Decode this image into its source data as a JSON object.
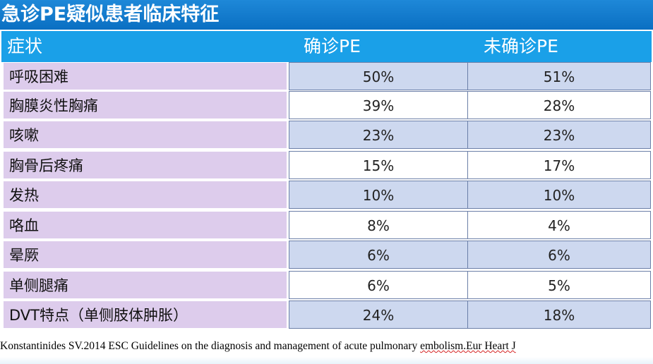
{
  "title": "急诊PE疑似患者临床特征",
  "table": {
    "headers": {
      "symptom": "症状",
      "pe": "确诊PE",
      "non_pe": "未确诊PE"
    },
    "rows": [
      {
        "symptom": "呼吸困难",
        "pe": "50%",
        "non_pe": "51%"
      },
      {
        "symptom": "胸膜炎性胸痛",
        "pe": "39%",
        "non_pe": "28%"
      },
      {
        "symptom": "咳嗽",
        "pe": "23%",
        "non_pe": "23%"
      },
      {
        "symptom": "胸骨后疼痛",
        "pe": "15%",
        "non_pe": "17%"
      },
      {
        "symptom": "发热",
        "pe": "10%",
        "non_pe": "10%"
      },
      {
        "symptom": "咯血",
        "pe": "8%",
        "non_pe": "4%"
      },
      {
        "symptom": "晕厥",
        "pe": "6%",
        "non_pe": "6%"
      },
      {
        "symptom": "单侧腿痛",
        "pe": "6%",
        "non_pe": "5%"
      },
      {
        "symptom": "DVT特点（单侧肢体肿胀）",
        "pe": "24%",
        "non_pe": "18%"
      }
    ]
  },
  "citation": {
    "main": "Konstantinides SV.2014 ESC Guidelines on the diagnosis and management of acute pulmonary ",
    "end": "embolism.Eur Heart J"
  },
  "colors": {
    "title_bar": "#0a6fc2",
    "header_row": "#1aa0e8",
    "symptom_cell": "#ddccec",
    "odd_value_cell": "#cdd8ef",
    "even_value_cell": "#ffffff"
  }
}
